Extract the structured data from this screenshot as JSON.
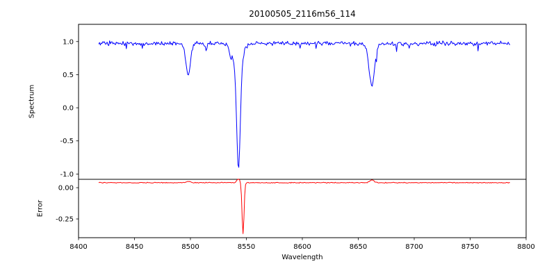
{
  "figure": {
    "title": "20100505_2116m56_114",
    "xlabel": "Wavelength",
    "spectrum_ylabel": "Spectrum",
    "error_ylabel": "Error"
  },
  "colors": {
    "background": "#ffffff",
    "axis": "#000000",
    "spectrum_line": "#0000ff",
    "error_line": "#ff0000"
  },
  "chart_data": {
    "type": "line",
    "title": "20100505_2116m56_114",
    "xlabel": "Wavelength",
    "xlim": [
      8400,
      8800
    ],
    "x_ticks": [
      "8400",
      "8450",
      "8500",
      "8550",
      "8600",
      "8650",
      "8700",
      "8750",
      "8800"
    ],
    "x_tick_values": [
      8400,
      8450,
      8500,
      8550,
      8600,
      8650,
      8700,
      8750,
      8800
    ],
    "x_data_range": [
      8418,
      8786
    ],
    "grid": false,
    "legend": "none",
    "noise_seed": 42,
    "panels": [
      {
        "name": "spectrum",
        "ylabel": "Spectrum",
        "ylim": [
          -1.08,
          1.26
        ],
        "y_ticks": [
          "1.0",
          "0.5",
          "0.0",
          "-0.5",
          "-1.0"
        ],
        "y_tick_values": [
          1.0,
          0.5,
          0.0,
          -0.5,
          -1.0
        ],
        "line_color": "#0000ff",
        "baseline": 0.97,
        "noise_amplitude": 0.025,
        "absorption_lines": [
          {
            "center": 8498.0,
            "depth": 0.48,
            "sigma": 2.0
          },
          {
            "center": 8514.0,
            "depth": 0.1,
            "sigma": 0.8
          },
          {
            "center": 8536.0,
            "depth": 0.12,
            "sigma": 0.8
          },
          {
            "center": 8542.0,
            "depth": 0.35,
            "sigma": 4.0
          },
          {
            "center": 8543.0,
            "depth": 1.55,
            "sigma": 1.6
          },
          {
            "center": 8662.0,
            "depth": 0.63,
            "sigma": 2.5
          }
        ]
      },
      {
        "name": "error",
        "ylabel": "Error",
        "ylim": [
          -0.4,
          0.067
        ],
        "y_ticks": [
          "0.00",
          "-0.25"
        ],
        "y_tick_values": [
          0.0,
          -0.25
        ],
        "line_color": "#ff0000",
        "baseline": 0.04,
        "noise_amplitude": 0.004,
        "features": [
          {
            "center": 8498.0,
            "depth": -0.012,
            "sigma": 1.5
          },
          {
            "center": 8543.0,
            "depth": -0.03,
            "sigma": 1.5
          },
          {
            "center": 8547.0,
            "depth": 0.41,
            "sigma": 0.9
          },
          {
            "center": 8662.0,
            "depth": -0.02,
            "sigma": 2.0
          }
        ]
      }
    ]
  }
}
